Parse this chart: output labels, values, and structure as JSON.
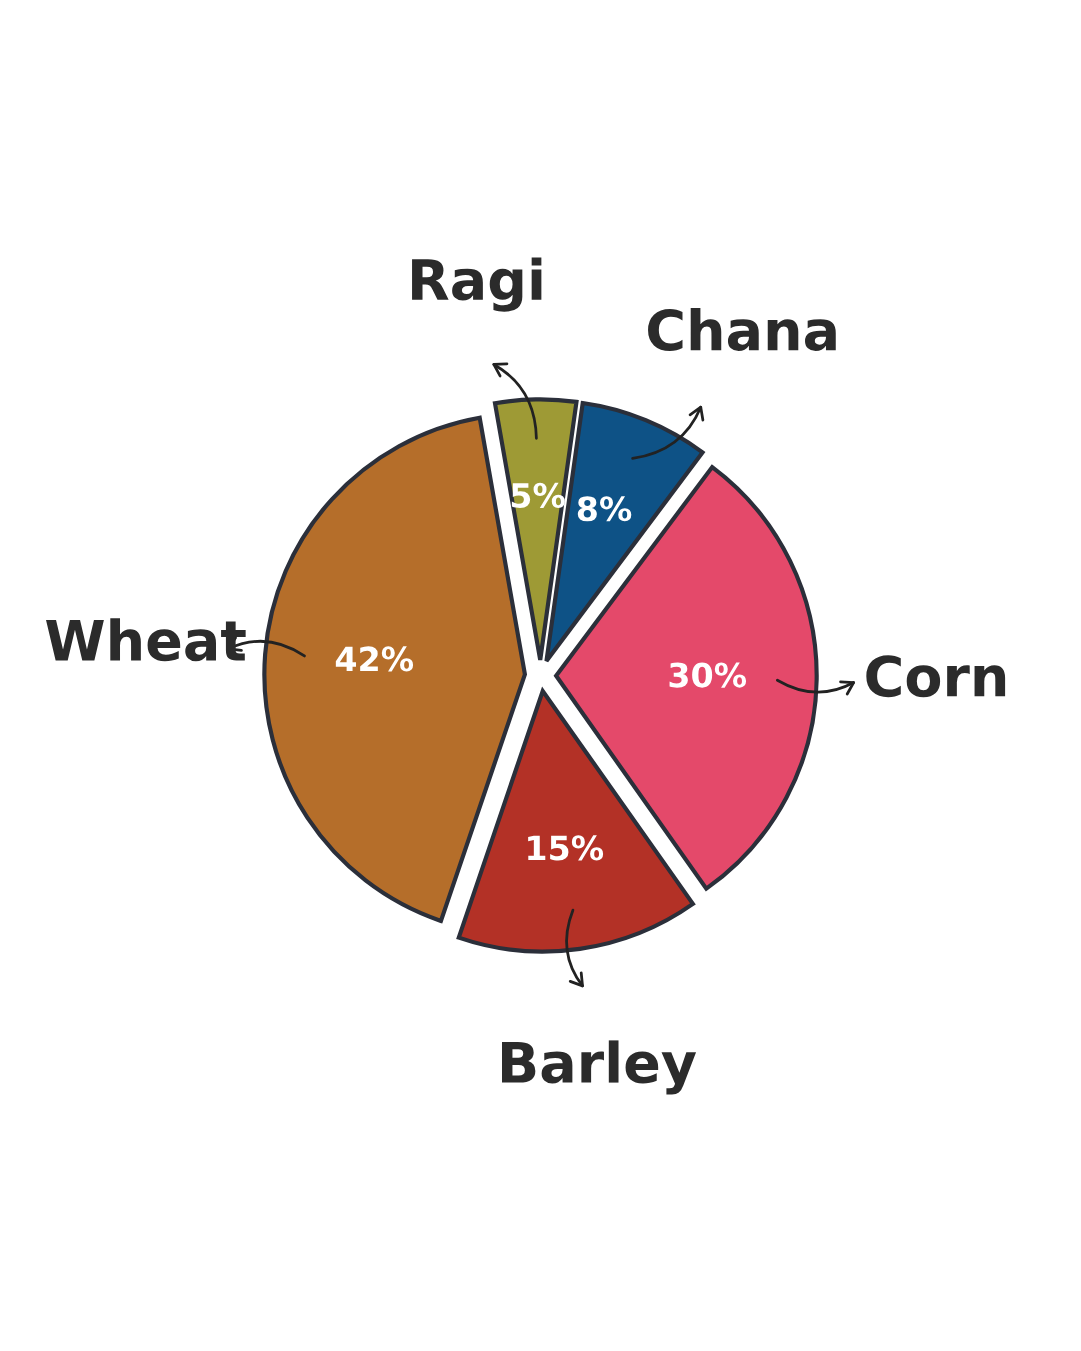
{
  "chart_data": {
    "type": "pie",
    "categories": [
      "Ragi",
      "Chana",
      "Corn",
      "Barley",
      "Wheat"
    ],
    "values": [
      5,
      8,
      30,
      15,
      42
    ],
    "value_labels": [
      "5%",
      "8%",
      "30%",
      "15%",
      "42%"
    ],
    "colors": [
      "#9e9a35",
      "#0e5286",
      "#e4496a",
      "#b33126",
      "#b56e2a"
    ]
  }
}
